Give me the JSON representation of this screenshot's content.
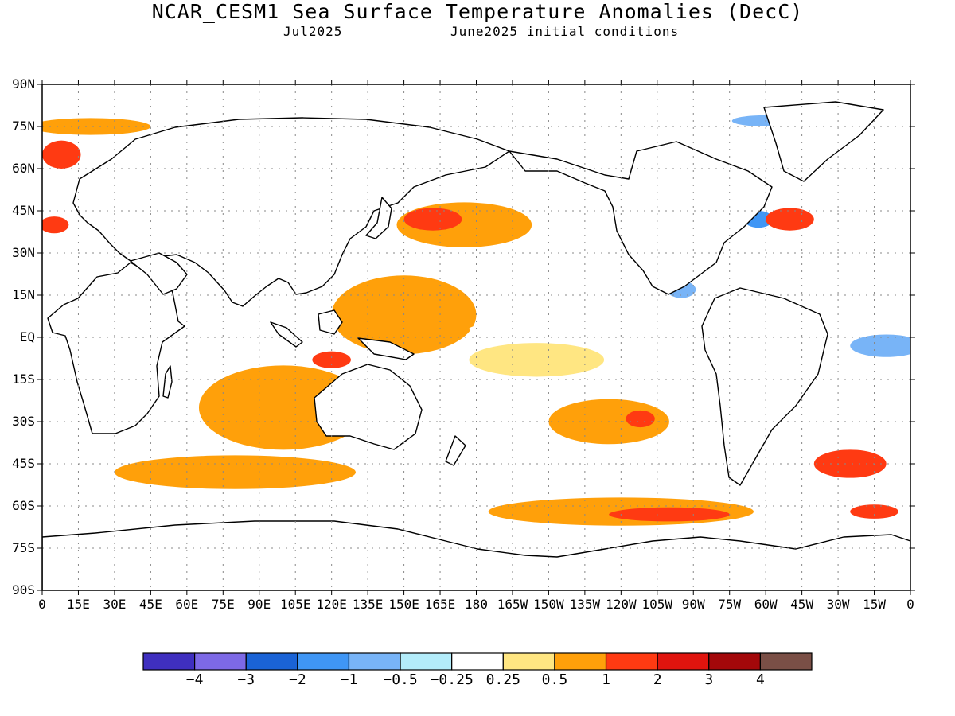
{
  "title": "NCAR_CESM1 Sea Surface Temperature Anomalies (DecC)",
  "subtitle_left": "Jul2025",
  "subtitle_right": "June2025 initial conditions",
  "lat_labels": [
    "90N",
    "75N",
    "60N",
    "45N",
    "30N",
    "15N",
    "EQ",
    "15S",
    "30S",
    "45S",
    "60S",
    "75S",
    "90S"
  ],
  "lon_labels": [
    "0",
    "15E",
    "30E",
    "45E",
    "60E",
    "75E",
    "90E",
    "105E",
    "120E",
    "135E",
    "150E",
    "165E",
    "180",
    "165W",
    "150W",
    "135W",
    "120W",
    "105W",
    "90W",
    "75W",
    "60W",
    "45W",
    "30W",
    "15W",
    "0"
  ],
  "colorbar": {
    "colors": [
      "#3f2fbf",
      "#7d69e6",
      "#1a63d6",
      "#3f96f5",
      "#78b4f7",
      "#b3ecfa",
      "#ffffff",
      "#ffe682",
      "#ffa00a",
      "#ff3a12",
      "#e0140e",
      "#a3080a",
      "#7a4f46"
    ],
    "labels": [
      "-4",
      "-3",
      "-2",
      "-1",
      "-0.5",
      "-0.25",
      "0.25",
      "0.5",
      "1",
      "2",
      "3",
      "4"
    ]
  },
  "chart_data": {
    "type": "heatmap",
    "title": "NCAR_CESM1 Sea Surface Temperature Anomalies (DecC)",
    "xlim": [
      0,
      360
    ],
    "ylim": [
      -90,
      90
    ],
    "grid": true,
    "units": "DecC",
    "contour_levels": [
      -4,
      -3,
      -2,
      -1,
      -0.5,
      -0.25,
      0.25,
      0.5,
      1,
      2,
      3,
      4
    ],
    "features": [
      {
        "lon": 175,
        "lat": 40,
        "rx": 28,
        "ry": 8,
        "anomaly": 0.75
      },
      {
        "lon": 162,
        "lat": 42,
        "rx": 12,
        "ry": 4,
        "anomaly": 1.5
      },
      {
        "lon": 150,
        "lat": 8,
        "rx": 30,
        "ry": 14,
        "anomaly": 0.75
      },
      {
        "lon": 215,
        "lat": 3,
        "rx": 38,
        "ry": 3,
        "anomaly": 0
      },
      {
        "lon": 205,
        "lat": -8,
        "rx": 28,
        "ry": 6,
        "anomaly": 0.25
      },
      {
        "lon": 235,
        "lat": -30,
        "rx": 25,
        "ry": 8,
        "anomaly": 0.75
      },
      {
        "lon": 248,
        "lat": -29,
        "rx": 6,
        "ry": 3,
        "anomaly": 1.5
      },
      {
        "lon": 265,
        "lat": 17,
        "rx": 6,
        "ry": 3,
        "anomaly": -1
      },
      {
        "lon": 297,
        "lat": 42,
        "rx": 6,
        "ry": 3,
        "anomaly": -1.5
      },
      {
        "lon": 310,
        "lat": 42,
        "rx": 10,
        "ry": 4,
        "anomaly": 1.5
      },
      {
        "lon": 350,
        "lat": -3,
        "rx": 15,
        "ry": 4,
        "anomaly": -1
      },
      {
        "lon": 100,
        "lat": -25,
        "rx": 35,
        "ry": 15,
        "anomaly": 0.75
      },
      {
        "lon": 120,
        "lat": -8,
        "rx": 8,
        "ry": 3,
        "anomaly": 1.5
      },
      {
        "lon": 80,
        "lat": -48,
        "rx": 50,
        "ry": 6,
        "anomaly": 0.75
      },
      {
        "lon": 240,
        "lat": -62,
        "rx": 55,
        "ry": 5,
        "anomaly": 0.75
      },
      {
        "lon": 260,
        "lat": -63,
        "rx": 25,
        "ry": 2.5,
        "anomaly": 1.5
      },
      {
        "lon": 335,
        "lat": -45,
        "rx": 15,
        "ry": 5,
        "anomaly": 1.5
      },
      {
        "lon": 345,
        "lat": -62,
        "rx": 10,
        "ry": 2.5,
        "anomaly": 1.5
      },
      {
        "lon": 300,
        "lat": 77,
        "rx": 14,
        "ry": 2,
        "anomaly": -1
      },
      {
        "lon": 20,
        "lat": 75,
        "rx": 25,
        "ry": 3,
        "anomaly": 0.75
      },
      {
        "lon": 8,
        "lat": 65,
        "rx": 8,
        "ry": 5,
        "anomaly": 1.5
      },
      {
        "lon": 5,
        "lat": 40,
        "rx": 6,
        "ry": 3,
        "anomaly": 1.5
      }
    ]
  }
}
